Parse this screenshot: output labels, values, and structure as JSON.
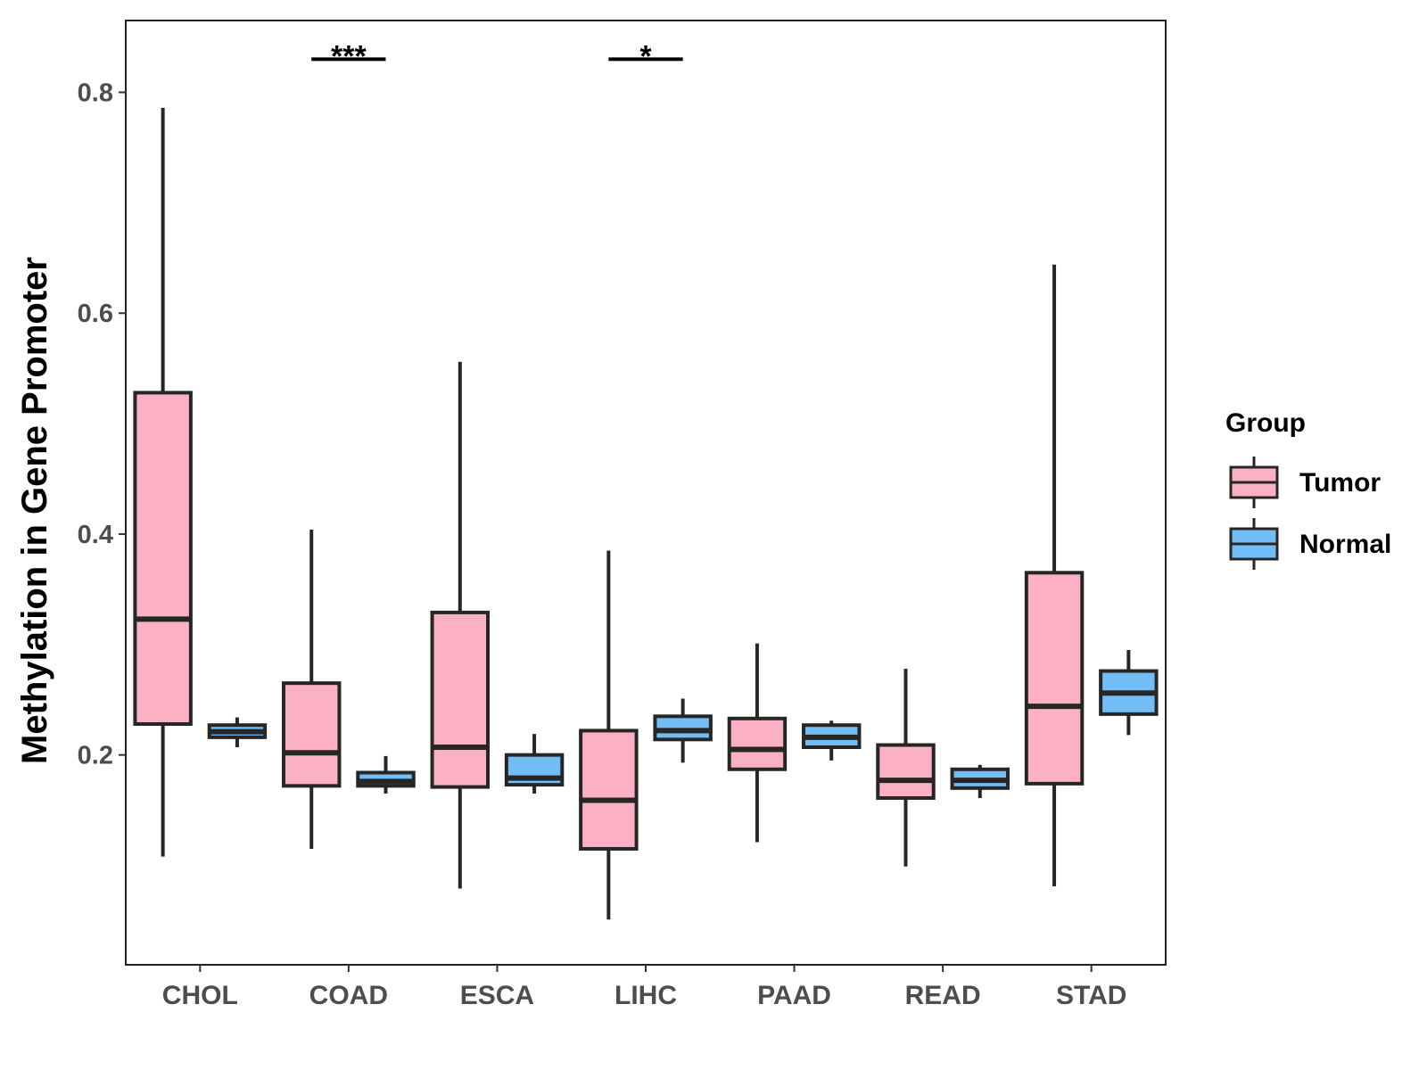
{
  "chart_data": {
    "type": "boxplot",
    "title": "",
    "xlabel": "",
    "ylabel": "Methylation in Gene Promoter",
    "ylim": [
      0.01,
      0.865
    ],
    "yticks": [
      0.2,
      0.4,
      0.6,
      0.8
    ],
    "ytick_labels": [
      "0.2",
      "0.4",
      "0.6",
      "0.8"
    ],
    "grid": false,
    "categories": [
      "CHOL",
      "COAD",
      "ESCA",
      "LIHC",
      "PAAD",
      "READ",
      "STAD"
    ],
    "legend": {
      "title": "Group",
      "position": "right",
      "entries": [
        {
          "name": "Tumor",
          "color": "#fbb1c3"
        },
        {
          "name": "Normal",
          "color": "#73bdf7"
        }
      ]
    },
    "series": [
      {
        "name": "Tumor",
        "color": "#fbb1c3",
        "boxes": [
          {
            "category": "CHOL",
            "min": 0.108,
            "q1": 0.228,
            "median": 0.323,
            "q3": 0.528,
            "max": 0.786
          },
          {
            "category": "COAD",
            "min": 0.115,
            "q1": 0.172,
            "median": 0.202,
            "q3": 0.265,
            "max": 0.404
          },
          {
            "category": "ESCA",
            "min": 0.079,
            "q1": 0.171,
            "median": 0.207,
            "q3": 0.329,
            "max": 0.556
          },
          {
            "category": "LIHC",
            "min": 0.051,
            "q1": 0.115,
            "median": 0.159,
            "q3": 0.222,
            "max": 0.385
          },
          {
            "category": "PAAD",
            "min": 0.121,
            "q1": 0.187,
            "median": 0.205,
            "q3": 0.233,
            "max": 0.301
          },
          {
            "category": "READ",
            "min": 0.099,
            "q1": 0.161,
            "median": 0.177,
            "q3": 0.209,
            "max": 0.278
          },
          {
            "category": "STAD",
            "min": 0.081,
            "q1": 0.174,
            "median": 0.244,
            "q3": 0.365,
            "max": 0.644
          }
        ]
      },
      {
        "name": "Normal",
        "color": "#73bdf7",
        "boxes": [
          {
            "category": "CHOL",
            "min": 0.207,
            "q1": 0.216,
            "median": 0.221,
            "q3": 0.227,
            "max": 0.234
          },
          {
            "category": "COAD",
            "min": 0.165,
            "q1": 0.172,
            "median": 0.176,
            "q3": 0.184,
            "max": 0.199
          },
          {
            "category": "ESCA",
            "min": 0.165,
            "q1": 0.173,
            "median": 0.179,
            "q3": 0.2,
            "max": 0.219
          },
          {
            "category": "LIHC",
            "min": 0.193,
            "q1": 0.214,
            "median": 0.222,
            "q3": 0.235,
            "max": 0.251
          },
          {
            "category": "PAAD",
            "min": 0.195,
            "q1": 0.207,
            "median": 0.216,
            "q3": 0.227,
            "max": 0.231
          },
          {
            "category": "READ",
            "min": 0.161,
            "q1": 0.17,
            "median": 0.177,
            "q3": 0.187,
            "max": 0.191
          },
          {
            "category": "STAD",
            "min": 0.218,
            "q1": 0.237,
            "median": 0.256,
            "q3": 0.276,
            "max": 0.295
          }
        ]
      }
    ],
    "annotations": [
      {
        "category": "COAD",
        "label": "***",
        "y": 0.83
      },
      {
        "category": "LIHC",
        "label": "*",
        "y": 0.83
      }
    ]
  }
}
